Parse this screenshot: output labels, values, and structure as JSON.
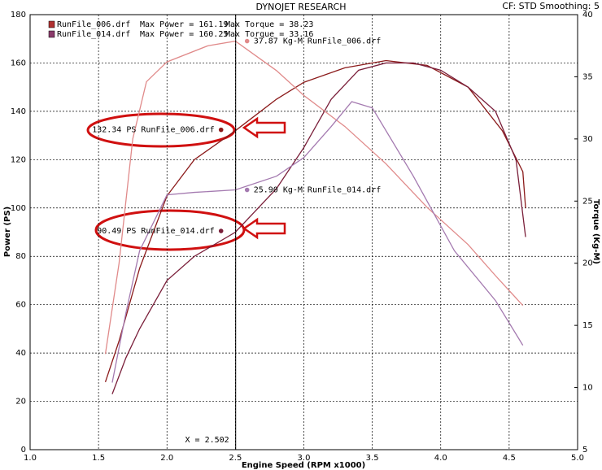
{
  "chart_data": {
    "type": "line",
    "title": "DYNOJET RESEARCH",
    "settings_label": "CF: STD  Smoothing: 5",
    "x_label": "Engine Speed (RPM x1000)",
    "y_label": "Power (PS)",
    "y2_label": "Torque (Kg-M)",
    "xlim": [
      1,
      5
    ],
    "xticks": [
      {
        "value": 1,
        "label": "1.0"
      },
      {
        "value": 1.5,
        "label": "1.5"
      },
      {
        "value": 2,
        "label": "2.0"
      },
      {
        "value": 2.5,
        "label": "2.5"
      },
      {
        "value": 3,
        "label": "3.0"
      },
      {
        "value": 3.5,
        "label": "3.5"
      },
      {
        "value": 4,
        "label": "4.0"
      },
      {
        "value": 4.5,
        "label": "4.5"
      },
      {
        "value": 5,
        "label": "5.0"
      }
    ],
    "ylim": [
      0,
      180
    ],
    "yticks": [
      0,
      20,
      40,
      60,
      80,
      100,
      120,
      140,
      160,
      180
    ],
    "y2lim": [
      5,
      40
    ],
    "y2ticks": [
      5,
      10,
      15,
      20,
      25,
      30,
      35,
      40
    ],
    "grid": true,
    "legend": [
      {
        "file": "RunFile_006.drf",
        "max_power": "Max Power = 161.19",
        "max_torque": "Max Torque = 38.23",
        "color": "#b03030"
      },
      {
        "file": "RunFile_014.drf",
        "max_power": "Max Power = 160.25",
        "max_torque": "Max Torque = 33.16",
        "color": "#8a3a6a"
      }
    ],
    "series": [
      {
        "name": "RunFile_006.drf",
        "color": "#8b1a1a",
        "axis": "y",
        "x": [
          1.55,
          1.65,
          1.8,
          2.0,
          2.2,
          2.5,
          2.8,
          3.0,
          3.3,
          3.6,
          3.9,
          4.2,
          4.45,
          4.6,
          4.62
        ],
        "values": [
          28,
          45,
          75,
          105,
          120,
          132,
          145,
          152,
          158,
          161,
          159,
          150,
          132,
          115,
          100
        ]
      },
      {
        "name": "RunFile_014.drf",
        "color": "#7a1f3a",
        "axis": "y",
        "x": [
          1.6,
          1.7,
          1.8,
          2.0,
          2.2,
          2.5,
          2.8,
          3.0,
          3.2,
          3.4,
          3.6,
          3.8,
          4.0,
          4.2,
          4.4,
          4.55,
          4.62
        ],
        "values": [
          23,
          38,
          50,
          70,
          80,
          90,
          108,
          125,
          145,
          157,
          160,
          160,
          157,
          150,
          140,
          120,
          88
        ]
      },
      {
        "name": "RunFile_006.drf",
        "color": "#e08a8a",
        "axis": "y2",
        "x": [
          1.55,
          1.65,
          1.75,
          1.85,
          2.0,
          2.3,
          2.5,
          2.8,
          3.0,
          3.3,
          3.6,
          3.9,
          4.2,
          4.4,
          4.6
        ],
        "values": [
          12.7,
          20,
          30,
          34.6,
          36.2,
          37.5,
          37.87,
          35.5,
          33.5,
          31,
          28,
          24.5,
          21.5,
          19,
          16.6
        ]
      },
      {
        "name": "RunFile_014.drf",
        "color": "#a47ab0",
        "axis": "y2",
        "x": [
          1.6,
          1.7,
          1.8,
          2.0,
          2.2,
          2.5,
          2.8,
          3.0,
          3.2,
          3.35,
          3.5,
          3.8,
          4.1,
          4.4,
          4.6
        ],
        "values": [
          10.4,
          16,
          21,
          25.5,
          25.7,
          25.9,
          27,
          28.5,
          31,
          33,
          32.5,
          27,
          21,
          17,
          13.4
        ]
      }
    ],
    "cursor": {
      "x": 2.502,
      "label": "X = 2.502"
    },
    "annotations": [
      {
        "text": "132.34 PS RunFile_006.drf",
        "y": 132.34,
        "axis": "y",
        "series": 0
      },
      {
        "text": "90.49 PS RunFile_014.drf",
        "y": 90.49,
        "axis": "y",
        "series": 1
      },
      {
        "text": "37.87 Kg-M RunFile_006.drf",
        "y": 37.87,
        "axis": "y2",
        "series": 2
      },
      {
        "text": "25.90 Kg-M RunFile_014.drf",
        "y": 25.9,
        "axis": "y2",
        "series": 3
      }
    ]
  }
}
